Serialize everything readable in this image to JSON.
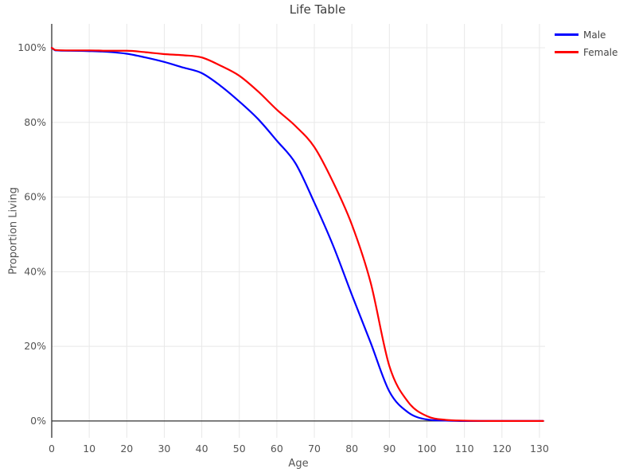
{
  "chart_data": {
    "type": "line",
    "title": "Life Table",
    "xlabel": "Age",
    "ylabel": "Proportion Living",
    "x_ticks": [
      0,
      10,
      20,
      30,
      40,
      50,
      60,
      70,
      80,
      90,
      100,
      110,
      120,
      130
    ],
    "y_ticks": [
      0,
      20,
      40,
      60,
      80,
      100
    ],
    "y_tick_suffix": "%",
    "xlim": [
      0,
      131.5
    ],
    "ylim": [
      -4.5,
      106.4
    ],
    "grid": true,
    "legend_position": "outside-top-right",
    "units": "percent",
    "x": [
      0,
      1,
      5,
      10,
      15,
      20,
      25,
      30,
      35,
      40,
      45,
      50,
      55,
      60,
      65,
      70,
      75,
      80,
      85,
      90,
      95,
      100,
      105,
      110,
      120,
      131
    ],
    "series": [
      {
        "name": "Male",
        "color": "#0000ff",
        "values": [
          100,
          99.3,
          99.2,
          99.1,
          98.9,
          98.4,
          97.4,
          96.2,
          94.7,
          93.2,
          89.8,
          85.6,
          80.9,
          75.1,
          69.0,
          58.5,
          47.0,
          33.8,
          21.0,
          7.9,
          2.3,
          0.4,
          0.1,
          0.0,
          0.0,
          0.0
        ]
      },
      {
        "name": "Female",
        "color": "#ff0000",
        "values": [
          100,
          99.4,
          99.3,
          99.3,
          99.2,
          99.2,
          98.8,
          98.3,
          98.0,
          97.4,
          95.2,
          92.5,
          88.3,
          83.4,
          79.0,
          73.4,
          64.0,
          52.6,
          37.1,
          14.7,
          5.1,
          1.3,
          0.3,
          0.1,
          0.0,
          0.0
        ]
      }
    ],
    "colors": {
      "grid": "#e8e8e8",
      "zeroline": "#333333",
      "tick_label": "#545454",
      "axis_title": "#545454",
      "title": "#3d3d3d",
      "background": "#ffffff"
    }
  }
}
